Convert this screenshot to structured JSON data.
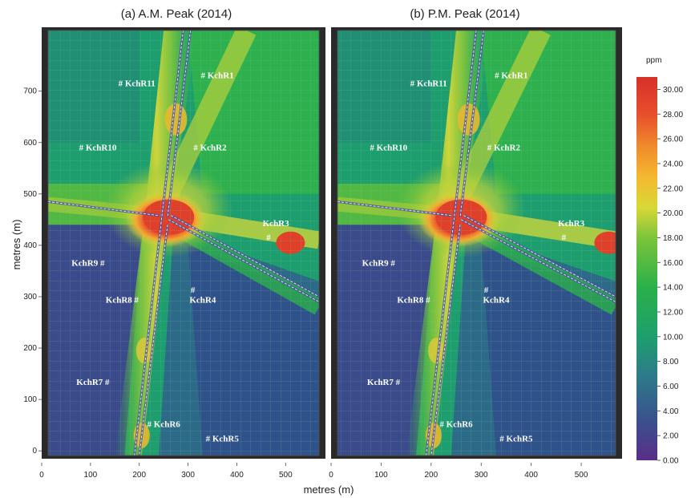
{
  "chart_data": [
    {
      "type": "heatmap",
      "title": "(a) A.M. Peak (2014)",
      "xlabel": "metres (m)",
      "ylabel": "metres (m)",
      "xlim": [
        0,
        580
      ],
      "ylim": [
        -20,
        815
      ],
      "x_ticks": [
        0,
        100,
        200,
        300,
        400,
        500
      ],
      "y_ticks": [
        0,
        100,
        200,
        300,
        400,
        500,
        600,
        700
      ],
      "receptors": [
        {
          "name": "# KchR1",
          "x": 360,
          "y": 725
        },
        {
          "name": "# KchR11",
          "x": 195,
          "y": 710
        },
        {
          "name": "# KchR2",
          "x": 345,
          "y": 585
        },
        {
          "name": "# KchR10",
          "x": 115,
          "y": 585
        },
        {
          "name": "KchR3",
          "x": 480,
          "y": 437
        },
        {
          "name": "#",
          "x": 465,
          "y": 410
        },
        {
          "name": "KchR9 #",
          "x": 95,
          "y": 360
        },
        {
          "name": "KchR8 #",
          "x": 165,
          "y": 288
        },
        {
          "name": "#",
          "x": 310,
          "y": 308
        },
        {
          "name": "KchR4",
          "x": 330,
          "y": 288
        },
        {
          "name": "KchR7 #",
          "x": 105,
          "y": 128
        },
        {
          "name": "# KchR6",
          "x": 250,
          "y": 46
        },
        {
          "name": "# KchR5",
          "x": 370,
          "y": 18
        }
      ]
    },
    {
      "type": "heatmap",
      "title": "(b) P.M. Peak (2014)",
      "xlabel": "metres (m)",
      "ylabel": "",
      "xlim": [
        0,
        580
      ],
      "ylim": [
        -20,
        815
      ],
      "x_ticks": [
        0,
        100,
        200,
        300,
        400,
        500
      ],
      "y_ticks": [],
      "receptors": [
        {
          "name": "# KchR1",
          "x": 360,
          "y": 725
        },
        {
          "name": "# KchR11",
          "x": 195,
          "y": 710
        },
        {
          "name": "# KchR2",
          "x": 345,
          "y": 585
        },
        {
          "name": "# KchR10",
          "x": 115,
          "y": 585
        },
        {
          "name": "KchR3",
          "x": 480,
          "y": 437
        },
        {
          "name": "#",
          "x": 465,
          "y": 410
        },
        {
          "name": "KchR9 #",
          "x": 95,
          "y": 360
        },
        {
          "name": "KchR8 #",
          "x": 165,
          "y": 288
        },
        {
          "name": "#",
          "x": 310,
          "y": 308
        },
        {
          "name": "KchR4",
          "x": 330,
          "y": 288
        },
        {
          "name": "KchR7 #",
          "x": 105,
          "y": 128
        },
        {
          "name": "# KchR6",
          "x": 250,
          "y": 46
        },
        {
          "name": "# KchR5",
          "x": 370,
          "y": 18
        }
      ]
    }
  ],
  "colorbar": {
    "unit": "ppm",
    "ticks": [
      "30.00",
      "28.00",
      "26.00",
      "24.00",
      "22.00",
      "20.00",
      "18.00",
      "16.00",
      "14.00",
      "12.00",
      "10.00",
      "8.00",
      "6.00",
      "4.00",
      "2.00",
      "0.00"
    ],
    "range": [
      0,
      31
    ],
    "colors": [
      "#5a2e8a",
      "#3b4f8c",
      "#2e7a8a",
      "#1e9e6e",
      "#2ab04a",
      "#7cc43a",
      "#d8d838",
      "#f4b830",
      "#f08a2c",
      "#e8502c",
      "#d8302a"
    ]
  }
}
